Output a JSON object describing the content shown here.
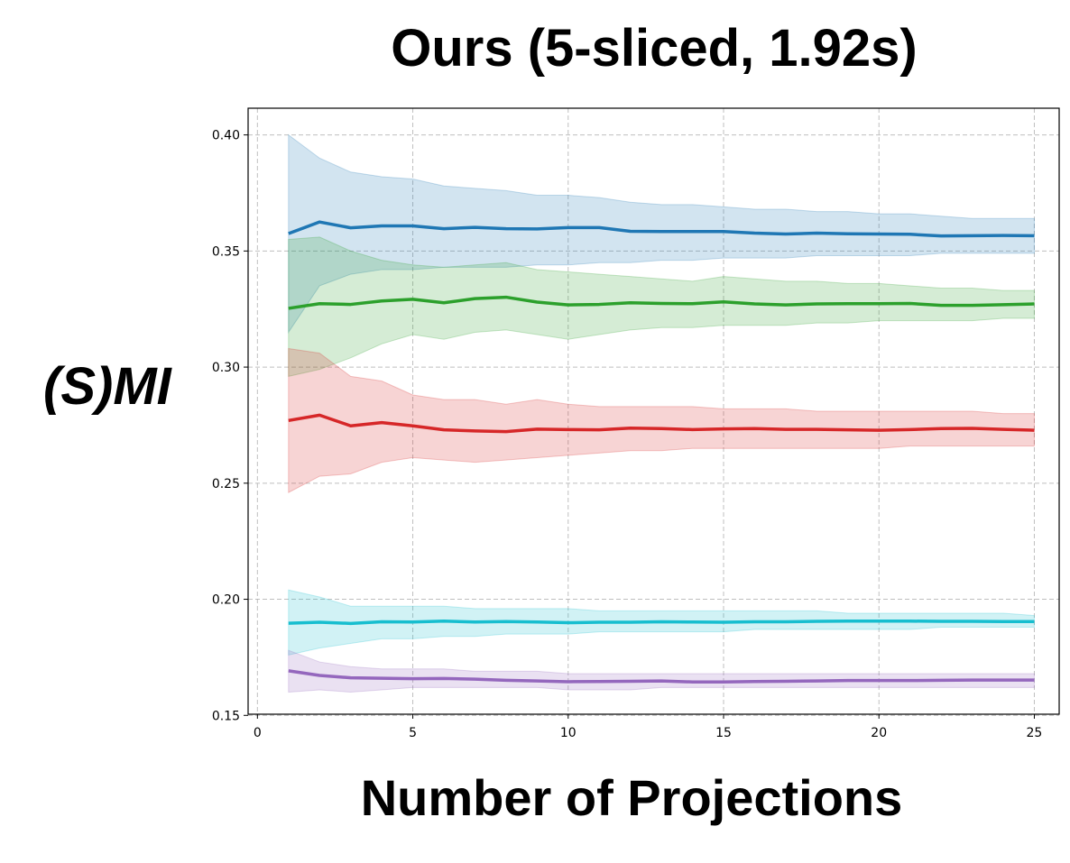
{
  "chart_data": {
    "type": "line",
    "title": "Ours (5-sliced, 1.92s)",
    "xlabel": "Number of Projections",
    "ylabel": "(S)MI",
    "xlim": [
      -0.3,
      25.8
    ],
    "ylim": [
      0.1505,
      0.4115
    ],
    "xticks": [
      0,
      5,
      10,
      15,
      20,
      25
    ],
    "yticks": [
      0.15,
      0.2,
      0.25,
      0.3,
      0.35,
      0.4
    ],
    "xtick_labels": [
      "0",
      "5",
      "10",
      "15",
      "20",
      "25"
    ],
    "ytick_labels": [
      "0.15",
      "0.20",
      "0.25",
      "0.30",
      "0.35",
      "0.40"
    ],
    "grid": true,
    "x": [
      1,
      2,
      3,
      4,
      5,
      6,
      7,
      8,
      9,
      10,
      11,
      12,
      13,
      14,
      15,
      16,
      17,
      18,
      19,
      20,
      21,
      22,
      23,
      24,
      25
    ],
    "series": [
      {
        "color": "#1f77b4",
        "values": [
          0.3575,
          0.3625,
          0.36,
          0.3608,
          0.3608,
          0.3596,
          0.3602,
          0.3596,
          0.3595,
          0.3601,
          0.3601,
          0.3585,
          0.3584,
          0.3584,
          0.3584,
          0.3577,
          0.3573,
          0.3577,
          0.3574,
          0.3573,
          0.3572,
          0.3565,
          0.3566,
          0.3567,
          0.3566
        ],
        "upper": [
          0.4,
          0.39,
          0.384,
          0.382,
          0.381,
          0.378,
          0.377,
          0.376,
          0.374,
          0.374,
          0.373,
          0.371,
          0.37,
          0.37,
          0.369,
          0.368,
          0.368,
          0.367,
          0.367,
          0.366,
          0.366,
          0.365,
          0.364,
          0.364,
          0.364
        ],
        "lower": [
          0.315,
          0.335,
          0.34,
          0.342,
          0.342,
          0.343,
          0.343,
          0.343,
          0.344,
          0.344,
          0.345,
          0.345,
          0.346,
          0.346,
          0.347,
          0.347,
          0.347,
          0.348,
          0.348,
          0.348,
          0.348,
          0.349,
          0.349,
          0.349,
          0.349
        ]
      },
      {
        "color": "#2ca02c",
        "values": [
          0.3253,
          0.3273,
          0.327,
          0.3285,
          0.3292,
          0.3277,
          0.3295,
          0.3301,
          0.328,
          0.3268,
          0.327,
          0.3277,
          0.3274,
          0.3273,
          0.3281,
          0.3272,
          0.3268,
          0.3272,
          0.3273,
          0.3273,
          0.3274,
          0.3266,
          0.3266,
          0.3269,
          0.3272
        ],
        "upper": [
          0.355,
          0.356,
          0.35,
          0.346,
          0.344,
          0.343,
          0.344,
          0.345,
          0.342,
          0.341,
          0.34,
          0.339,
          0.338,
          0.337,
          0.339,
          0.338,
          0.337,
          0.337,
          0.336,
          0.336,
          0.335,
          0.334,
          0.334,
          0.333,
          0.333
        ],
        "lower": [
          0.296,
          0.299,
          0.304,
          0.31,
          0.314,
          0.312,
          0.315,
          0.316,
          0.314,
          0.312,
          0.314,
          0.316,
          0.317,
          0.317,
          0.318,
          0.318,
          0.318,
          0.319,
          0.319,
          0.32,
          0.32,
          0.32,
          0.32,
          0.321,
          0.321
        ]
      },
      {
        "color": "#d62728",
        "values": [
          0.277,
          0.2793,
          0.2747,
          0.2761,
          0.2747,
          0.273,
          0.2725,
          0.2722,
          0.2733,
          0.2731,
          0.273,
          0.2737,
          0.2735,
          0.2731,
          0.2734,
          0.2735,
          0.2732,
          0.2732,
          0.273,
          0.2728,
          0.2731,
          0.2735,
          0.2736,
          0.2732,
          0.2728
        ],
        "upper": [
          0.308,
          0.306,
          0.296,
          0.294,
          0.288,
          0.286,
          0.286,
          0.284,
          0.286,
          0.284,
          0.283,
          0.283,
          0.283,
          0.283,
          0.282,
          0.282,
          0.282,
          0.281,
          0.281,
          0.281,
          0.281,
          0.281,
          0.281,
          0.28,
          0.28
        ],
        "lower": [
          0.246,
          0.253,
          0.254,
          0.259,
          0.261,
          0.26,
          0.259,
          0.26,
          0.261,
          0.262,
          0.263,
          0.264,
          0.264,
          0.265,
          0.265,
          0.265,
          0.265,
          0.265,
          0.265,
          0.265,
          0.266,
          0.266,
          0.266,
          0.266,
          0.266
        ]
      },
      {
        "color": "#17becf",
        "values": [
          0.1897,
          0.1901,
          0.1896,
          0.1903,
          0.1902,
          0.1906,
          0.1902,
          0.1904,
          0.1902,
          0.1899,
          0.1901,
          0.1901,
          0.1903,
          0.1902,
          0.1901,
          0.1903,
          0.1903,
          0.1905,
          0.1906,
          0.1906,
          0.1906,
          0.1905,
          0.1905,
          0.1904,
          0.1904
        ],
        "upper": [
          0.204,
          0.201,
          0.197,
          0.197,
          0.197,
          0.197,
          0.196,
          0.196,
          0.196,
          0.196,
          0.195,
          0.195,
          0.195,
          0.195,
          0.195,
          0.195,
          0.195,
          0.195,
          0.194,
          0.194,
          0.194,
          0.194,
          0.194,
          0.194,
          0.193
        ],
        "lower": [
          0.176,
          0.179,
          0.181,
          0.183,
          0.183,
          0.184,
          0.184,
          0.185,
          0.185,
          0.185,
          0.186,
          0.186,
          0.186,
          0.186,
          0.186,
          0.187,
          0.187,
          0.187,
          0.187,
          0.187,
          0.187,
          0.188,
          0.188,
          0.188,
          0.188
        ]
      },
      {
        "color": "#9467bd",
        "values": [
          0.1692,
          0.1672,
          0.1662,
          0.166,
          0.1658,
          0.1659,
          0.1656,
          0.1651,
          0.1648,
          0.1645,
          0.1646,
          0.1647,
          0.1648,
          0.1644,
          0.1644,
          0.1646,
          0.1647,
          0.1648,
          0.165,
          0.165,
          0.165,
          0.1651,
          0.1652,
          0.1652,
          0.1652
        ],
        "upper": [
          0.178,
          0.173,
          0.171,
          0.17,
          0.17,
          0.17,
          0.169,
          0.169,
          0.169,
          0.168,
          0.168,
          0.168,
          0.168,
          0.168,
          0.168,
          0.168,
          0.168,
          0.168,
          0.168,
          0.168,
          0.168,
          0.168,
          0.168,
          0.168,
          0.168
        ],
        "lower": [
          0.16,
          0.161,
          0.16,
          0.161,
          0.162,
          0.162,
          0.162,
          0.162,
          0.162,
          0.161,
          0.161,
          0.161,
          0.162,
          0.162,
          0.162,
          0.162,
          0.162,
          0.162,
          0.162,
          0.162,
          0.162,
          0.162,
          0.162,
          0.162,
          0.162
        ]
      }
    ]
  }
}
